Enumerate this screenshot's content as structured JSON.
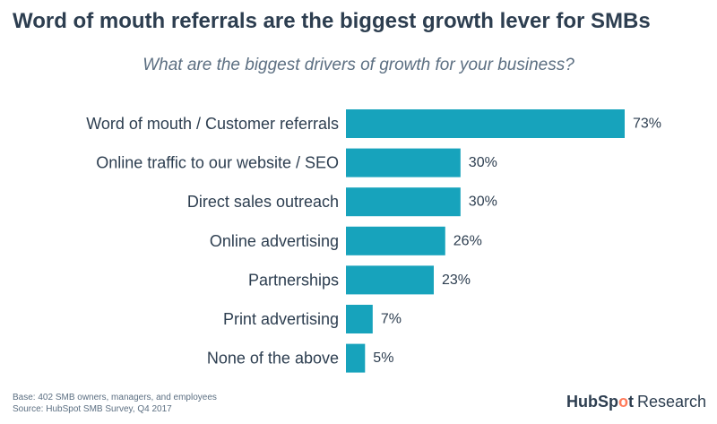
{
  "title": "Word of mouth referrals are the biggest growth lever for SMBs",
  "subtitle": "What are the biggest drivers of growth for your business?",
  "chart_data": {
    "type": "bar",
    "orientation": "horizontal",
    "categories": [
      "Word of mouth / Customer referrals",
      "Online traffic to our website / SEO",
      "Direct sales outreach",
      "Online advertising",
      "Partnerships",
      "Print advertising",
      "None of the above"
    ],
    "values": [
      73,
      30,
      30,
      26,
      23,
      7,
      5
    ],
    "value_labels": [
      "73%",
      "30%",
      "30%",
      "26%",
      "23%",
      "7%",
      "5%"
    ],
    "unit": "%",
    "xlim": [
      0,
      73
    ],
    "bar_color": "#17a3bc",
    "grid": false,
    "legend": "none"
  },
  "footnote": {
    "base": "Base: 402 SMB owners, managers, and employees",
    "source": "Source: HubSpot SMB Survey, Q4 2017"
  },
  "brand": {
    "hub": "HubSp",
    "o": "o",
    "t": "t",
    "word": "Research",
    "accent": "#ff7a59"
  }
}
